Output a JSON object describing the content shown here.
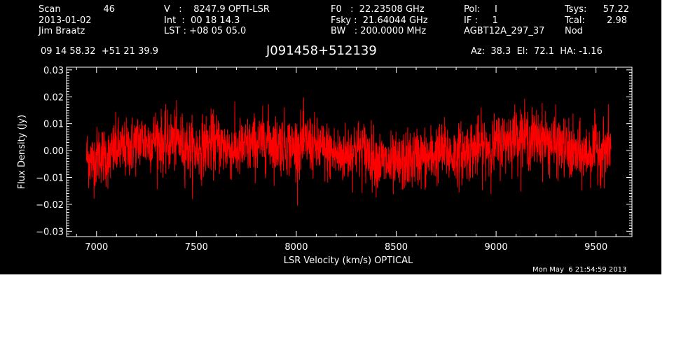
{
  "header": {
    "col1": {
      "scan_label": "Scan",
      "scan_value": "46",
      "date": "2013-01-02",
      "observer": "Jim Braatz"
    },
    "col2": {
      "v_line": "V   :    8247.9 OPTI-LSR",
      "int_line": "Int  :  00 18 14.3",
      "lst_line": "LST : +08 05 05.0"
    },
    "col3": {
      "f0_line": "F0   :  22.23508 GHz",
      "fsky_line": "Fsky :  21.64044 GHz",
      "bw_line": "BW   : 200.0000 MHz"
    },
    "col4": {
      "pol_line": "Pol:     I",
      "if_line": "IF :     1",
      "project": "AGBT12A_297_37"
    },
    "col5": {
      "tsys_label": "Tsys:",
      "tsys_value": "57.22",
      "tcal_label": "Tcal:",
      "tcal_value": "2.98",
      "mode": "Nod"
    },
    "coords": "09 14 58.32  +51 21 39.9",
    "object": "J091458+512139",
    "pointing": "Az:  38.3  El:  72.1  HA: -1.16"
  },
  "footer": {
    "timestamp": "Mon May  6 21:54:59 2013"
  },
  "colors": {
    "background": "#000000",
    "axes": "#ffffff",
    "series": "#ff0000"
  },
  "chart_data": {
    "type": "line",
    "title": "J091458+512139",
    "xlabel": "LSR Velocity (km/s) OPTICAL",
    "ylabel": "Flux Density (Jy)",
    "xlim": [
      6850,
      9680
    ],
    "ylim": [
      -0.032,
      0.031
    ],
    "xticks": [
      7000,
      7500,
      8000,
      8500,
      9000,
      9500
    ],
    "xtick_labels": [
      "7000",
      "7500",
      "8000",
      "8500",
      "9000",
      "9500"
    ],
    "yticks": [
      -0.03,
      -0.02,
      -0.01,
      0.0,
      0.01,
      0.02,
      0.03
    ],
    "ytick_labels": [
      "−0.03",
      "−0.02",
      "−0.01",
      "0.00",
      "0.01",
      "0.02",
      "0.03"
    ],
    "series": [
      {
        "x": [
          6950,
          6980,
          7020,
          7060,
          7100,
          7140,
          7180,
          7220,
          7260,
          7300,
          7340,
          7380,
          7420,
          7460,
          7500,
          7540,
          7580,
          7620,
          7660,
          7700,
          7740,
          7780,
          7820,
          7860,
          7900,
          7940,
          7980,
          8020,
          8060,
          8100,
          8140,
          8180,
          8220,
          8260,
          8300,
          8340,
          8380,
          8420,
          8460,
          8500,
          8540,
          8580,
          8620,
          8660,
          8700,
          8740,
          8780,
          8820,
          8860,
          8900,
          8940,
          8980,
          9020,
          9060,
          9100,
          9140,
          9180,
          9220,
          9260,
          9300,
          9340,
          9380,
          9420,
          9460,
          9500,
          9540,
          9575
        ],
        "y": [
          -0.002,
          -0.004,
          -0.001,
          -0.003,
          0.001,
          0.0,
          0.002,
          0.004,
          0.003,
          0.005,
          0.002,
          0.004,
          0.003,
          0.001,
          0.0,
          0.002,
          0.003,
          0.002,
          0.001,
          0.0,
          0.001,
          0.002,
          0.003,
          0.004,
          0.002,
          0.003,
          0.001,
          0.002,
          0.003,
          0.001,
          0.0,
          -0.001,
          -0.002,
          -0.001,
          0.001,
          0.0,
          -0.002,
          -0.004,
          -0.005,
          -0.006,
          -0.004,
          -0.003,
          -0.002,
          -0.003,
          -0.001,
          0.0,
          -0.002,
          -0.001,
          0.0,
          0.001,
          0.002,
          0.001,
          0.003,
          0.004,
          0.006,
          0.005,
          0.004,
          0.005,
          0.003,
          0.002,
          0.001,
          -0.001,
          -0.002,
          -0.001,
          0.001,
          0.0,
          0.002
        ]
      }
    ],
    "noise_rms": 0.0055,
    "grid": false,
    "legend": "none"
  }
}
